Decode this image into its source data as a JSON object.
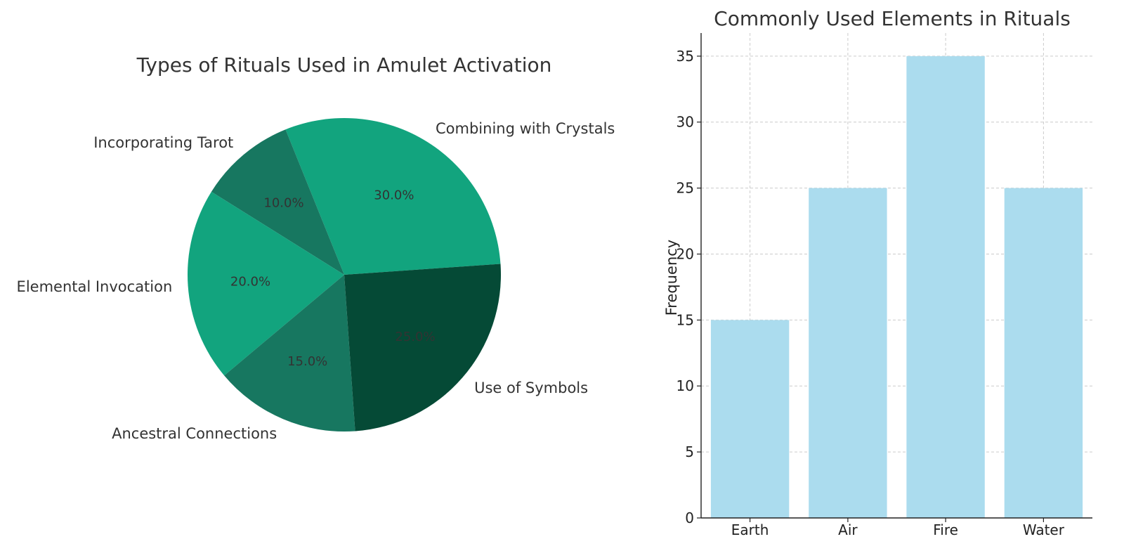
{
  "chart_data": [
    {
      "type": "pie",
      "title": "Types of Rituals Used in Amulet Activation",
      "slices": [
        {
          "label": "Combining with Crystals",
          "value": 30.0,
          "pct_label": "30.0%",
          "color": "#12a47e"
        },
        {
          "label": "Incorporating Tarot",
          "value": 10.0,
          "pct_label": "10.0%",
          "color": "#177760"
        },
        {
          "label": "Elemental Invocation",
          "value": 20.0,
          "pct_label": "20.0%",
          "color": "#12a47e"
        },
        {
          "label": "Ancestral Connections",
          "value": 15.0,
          "pct_label": "15.0%",
          "color": "#177760"
        },
        {
          "label": "Use of Symbols",
          "value": 25.0,
          "pct_label": "25.0%",
          "color": "#054a36"
        }
      ],
      "start_angle_deg": 4,
      "direction": "counterclockwise"
    },
    {
      "type": "bar",
      "title": "Commonly Used Elements in Rituals",
      "categories": [
        "Earth",
        "Air",
        "Fire",
        "Water"
      ],
      "values": [
        15,
        25,
        35,
        25
      ],
      "xlabel": "",
      "ylabel": "Frequency",
      "ylim": [
        0,
        36.75
      ],
      "yticks": [
        0,
        5,
        10,
        15,
        20,
        25,
        30,
        35
      ],
      "grid": true,
      "bar_color": "#abdcee"
    }
  ]
}
